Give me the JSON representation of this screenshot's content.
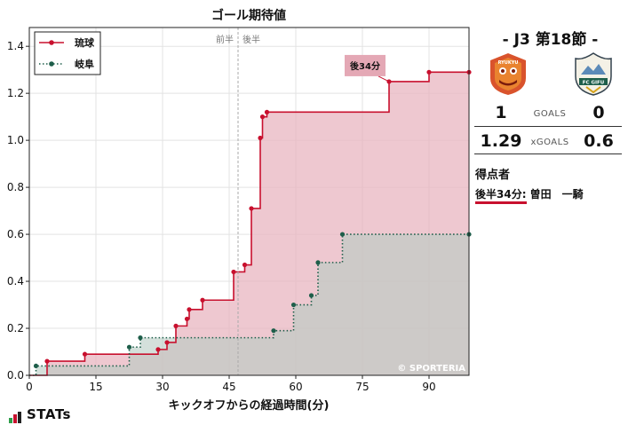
{
  "chart_data": {
    "type": "line",
    "title": "ゴール期待値",
    "xlabel": "キックオフからの経過時間(分)",
    "ylabel": "",
    "xlim": [
      0,
      99
    ],
    "ylim": [
      0,
      1.48
    ],
    "xticks": [
      0,
      15,
      30,
      45,
      60,
      75,
      90
    ],
    "yticks": [
      0.0,
      0.2,
      0.4,
      0.6,
      0.8,
      1.0,
      1.2,
      1.4
    ],
    "grid": true,
    "legend_position": "top-left",
    "halftime_minute": 47,
    "halftime_labels": [
      "前半",
      "後半"
    ],
    "watermark": "© SPORTERIA",
    "goal_annotation": {
      "label": "後34分",
      "minute": 81,
      "value": 1.25
    },
    "series": [
      {
        "name": "琉球",
        "color": "#c8102e",
        "fill": "#e8b6c0",
        "style": "solid",
        "end_minute": 99,
        "points": [
          [
            4,
            0.06
          ],
          [
            12.5,
            0.09
          ],
          [
            29,
            0.11
          ],
          [
            31,
            0.14
          ],
          [
            33,
            0.21
          ],
          [
            35.5,
            0.24
          ],
          [
            36,
            0.28
          ],
          [
            39,
            0.32
          ],
          [
            46,
            0.44
          ],
          [
            48.5,
            0.47
          ],
          [
            50,
            0.71
          ],
          [
            52,
            1.01
          ],
          [
            52.5,
            1.1
          ],
          [
            53.5,
            1.12
          ],
          [
            81,
            1.25
          ],
          [
            90,
            1.29
          ]
        ]
      },
      {
        "name": "岐阜",
        "color": "#1e5e4a",
        "fill": "#b7cbc3",
        "style": "dotted",
        "end_minute": 99,
        "points": [
          [
            1.5,
            0.04
          ],
          [
            22.5,
            0.12
          ],
          [
            25,
            0.16
          ],
          [
            55,
            0.19
          ],
          [
            59.5,
            0.3
          ],
          [
            63.5,
            0.34
          ],
          [
            65,
            0.48
          ],
          [
            70.5,
            0.6
          ]
        ]
      }
    ]
  },
  "match": {
    "title": "- J3 第18節 -"
  },
  "teams": {
    "home": {
      "name": "琉球",
      "logo_text": "RYUKYU",
      "color": "#c8102e"
    },
    "away": {
      "name": "岐阜",
      "logo_text": "FC GIFU",
      "color": "#1e5e4a"
    }
  },
  "stats": {
    "goals_label": "GOALS",
    "home_goals": "1",
    "away_goals": "0",
    "xgoals_label": "xGOALS",
    "home_xg": "1.29",
    "away_xg": "0.6"
  },
  "scorers": {
    "title": "得点者",
    "items": [
      {
        "time": "後半34分:",
        "name": " 曽田　一騎"
      }
    ]
  },
  "brand": {
    "name": "STATs"
  }
}
